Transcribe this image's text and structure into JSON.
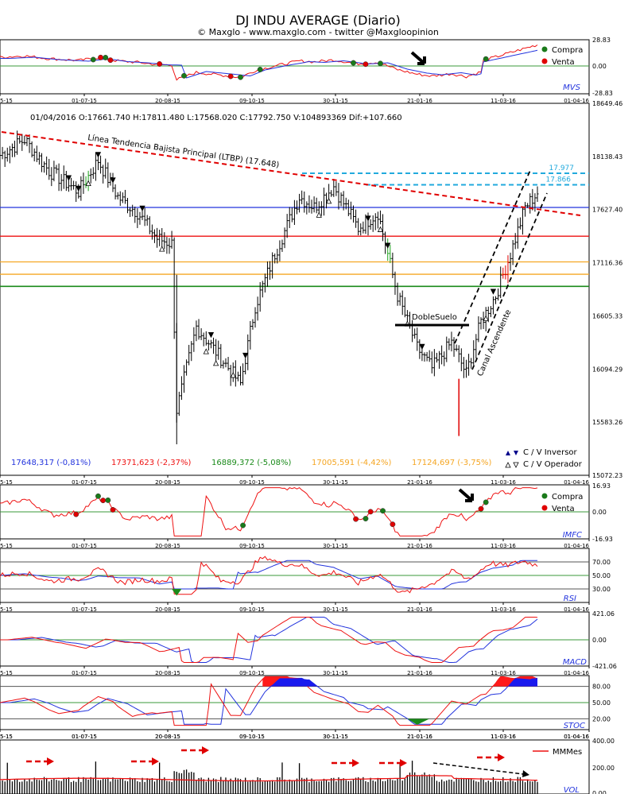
{
  "header": {
    "title": "DJ INDU AVERAGE (Diario)",
    "credit": "© Maxglo - www.maxglo.com - twitter @Maxgloopinion"
  },
  "x_axis": {
    "ticks": [
      "5-15",
      "01-07-15",
      "20-08-15",
      "09-10-15",
      "30-11-15",
      "21-01-16",
      "11-03-16",
      "01-04-16"
    ]
  },
  "colors": {
    "grid_green": "#3a9a3a",
    "buy": "#1a7a1a",
    "sell": "#e00000",
    "blue": "#2233dd",
    "red": "#ee1111",
    "orange": "#f5a623",
    "cyan": "#22aadd",
    "panel_label": "#2233dd"
  },
  "panels": {
    "mvs": {
      "label": "MVS",
      "ticks": [
        "28.83",
        "0.00",
        "-28.83"
      ],
      "legend": [
        "Compra",
        "Venta"
      ]
    },
    "price": {
      "info": "01/04/2016  O:17661.740  H:17811.480  L:17568.020  C:17792.750  V:104893369  Dif:+107.660",
      "ticks": [
        "18649.46",
        "18138.43",
        "17627.40",
        "17116.36",
        "16605.33",
        "16094.29",
        "15583.26",
        "15072.23"
      ],
      "ltbp_label": "Línea Tendencia Bajista Principal (LTBP)  (17.648)",
      "level_977": "17.977",
      "level_866": "17.866",
      "double_bottom": "DobleSuelo",
      "canal": "Canal Ascendente",
      "legend_inversor": "C / V Inversor",
      "legend_operador": "C / V Operador",
      "levels": [
        {
          "text": "17648,317 (-0,81%)",
          "value": 17648.317,
          "color": "#2233dd"
        },
        {
          "text": "17371,623 (-2,37%)",
          "value": 17371.623,
          "color": "#ee1111"
        },
        {
          "text": "16889,372 (-5,08%)",
          "value": 16889.372,
          "color": "#1a8a1a"
        },
        {
          "text": "17005,591 (-4,42%)",
          "value": 17005.591,
          "color": "#f5a623"
        },
        {
          "text": "17124,697 (-3,75%)",
          "value": 17124.697,
          "color": "#f5a623"
        }
      ]
    },
    "imfc": {
      "label": "IMFC",
      "ticks": [
        "16.93",
        "0.00",
        "-16.93"
      ],
      "legend": [
        "Compra",
        "Venta"
      ]
    },
    "rsi": {
      "label": "RSI",
      "ticks": [
        "70.00",
        "50.00",
        "30.00"
      ]
    },
    "macd": {
      "label": "MACD",
      "ticks": [
        "421.06",
        "0.00",
        "-421.06"
      ]
    },
    "stoc": {
      "label": "STOC",
      "ticks": [
        "80.00",
        "50.00",
        "20.00"
      ]
    },
    "vol": {
      "label": "VOL",
      "ticks": [
        "400.00",
        "200.00",
        "0.00"
      ],
      "legend": "MMMes"
    }
  },
  "chart_data": {
    "type": "line",
    "title": "DJ INDU AVERAGE (Diario)",
    "x_range": [
      "2015-05",
      "2016-04-01"
    ],
    "price_ohlc_last": {
      "date": "01/04/2016",
      "open": 17661.74,
      "high": 17811.48,
      "low": 17568.02,
      "close": 17792.75,
      "volume": 104893369,
      "change": 107.66
    },
    "price_ylim": [
      15072.23,
      18649.46
    ],
    "price_close_approx": {
      "x": [
        "2015-05",
        "2015-06",
        "2015-07",
        "2015-08-10",
        "2015-08-25",
        "2015-09-15",
        "2015-10-09",
        "2015-11-03",
        "2015-11-20",
        "2015-12-15",
        "2016-01-20",
        "2016-02-11",
        "2016-03-01",
        "2016-03-17",
        "2016-04-01"
      ],
      "y": [
        18150,
        17950,
        17650,
        17500,
        16000,
        16400,
        17050,
        17900,
        17800,
        17500,
        15900,
        15800,
        16700,
        17480,
        17792.75
      ]
    },
    "horizontal_levels": [
      17977,
      17866,
      17648.317,
      17371.623,
      17124.697,
      17005.591,
      16889.372
    ],
    "ltbp_value": 17648,
    "indicators": {
      "mvs_ylim": [
        -28.83,
        28.83
      ],
      "imfc_ylim": [
        -16.93,
        16.93
      ],
      "rsi_levels": [
        70,
        50,
        30
      ],
      "macd_ylim": [
        -421.06,
        421.06
      ],
      "stoc_levels": [
        80,
        50,
        20
      ],
      "vol_ylim": [
        0,
        400
      ]
    }
  }
}
